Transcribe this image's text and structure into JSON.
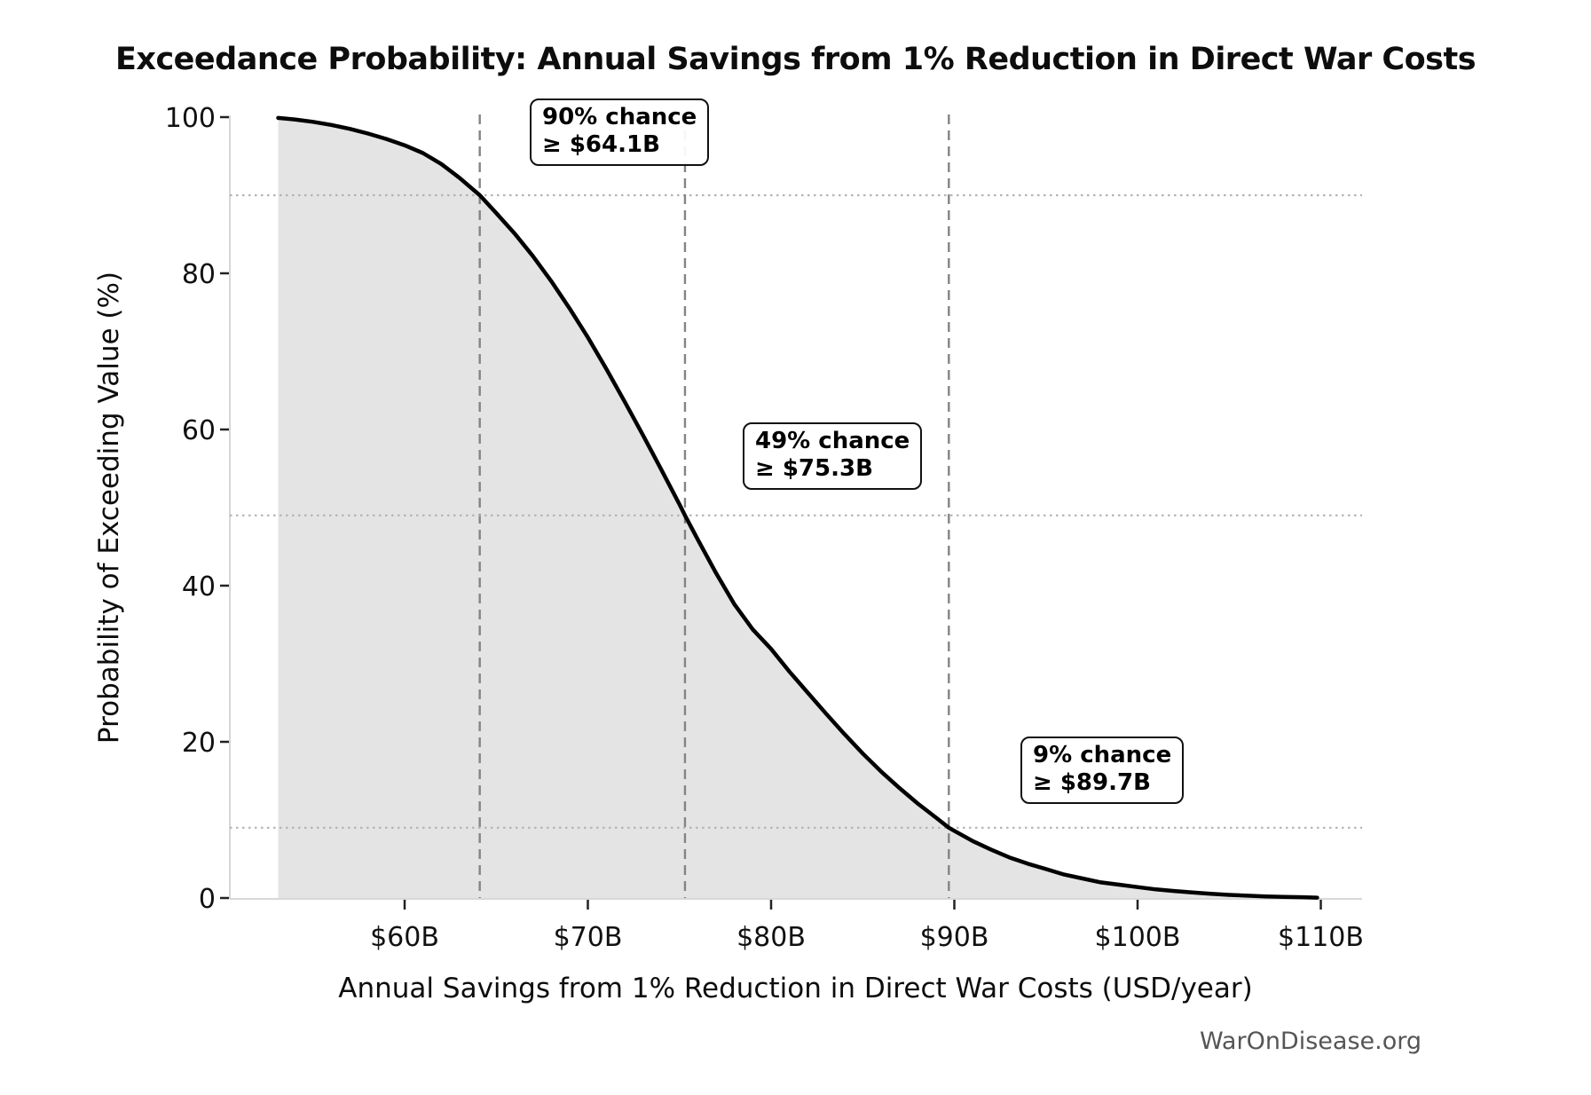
{
  "title": "Exceedance Probability: Annual Savings from 1% Reduction in Direct War Costs",
  "watermark": "WarOnDisease.org",
  "chart_data": {
    "type": "line",
    "title": "Exceedance Probability: Annual Savings from 1% Reduction in Direct War Costs",
    "xlabel": "Annual Savings from 1% Reduction in Direct War Costs (USD/year)",
    "ylabel": "Probability of Exceeding Value (%)",
    "x_unit": "USD billions per year",
    "xlim": [
      50.5,
      112.2
    ],
    "ylim": [
      0,
      100
    ],
    "grid": "reference lines only (no full grid)",
    "legend": "none",
    "x_ticks": [
      {
        "value": 60,
        "label": "$60B"
      },
      {
        "value": 70,
        "label": "$70B"
      },
      {
        "value": 80,
        "label": "$80B"
      },
      {
        "value": 90,
        "label": "$90B"
      },
      {
        "value": 100,
        "label": "$100B"
      },
      {
        "value": 110,
        "label": "$110B"
      }
    ],
    "y_ticks": [
      {
        "value": 0,
        "label": "0"
      },
      {
        "value": 20,
        "label": "20"
      },
      {
        "value": 40,
        "label": "40"
      },
      {
        "value": 60,
        "label": "60"
      },
      {
        "value": 80,
        "label": "80"
      },
      {
        "value": 100,
        "label": "100"
      }
    ],
    "series": [
      {
        "name": "exceedance-curve",
        "fill_under": true,
        "x": [
          53.1,
          54,
          55,
          56,
          57,
          58,
          59,
          60,
          61,
          62,
          63,
          64.1,
          65,
          66,
          67,
          68,
          69,
          70,
          71,
          72,
          73,
          74,
          75,
          75.3,
          76,
          77,
          78,
          79,
          80,
          81,
          82,
          83,
          84,
          85,
          86,
          87,
          88,
          89,
          89.7,
          90,
          91,
          92,
          93,
          94,
          95,
          96,
          97,
          98,
          99,
          100,
          101,
          102,
          103,
          104,
          105,
          106,
          107,
          108,
          109,
          109.8
        ],
        "y": [
          99.9,
          99.7,
          99.4,
          99.0,
          98.5,
          97.9,
          97.2,
          96.4,
          95.4,
          94.0,
          92.2,
          90.0,
          87.7,
          85.1,
          82.2,
          79.0,
          75.5,
          71.8,
          67.8,
          63.6,
          59.3,
          54.9,
          50.4,
          49.0,
          45.9,
          41.6,
          37.6,
          34.4,
          31.9,
          29.0,
          26.3,
          23.6,
          21.0,
          18.5,
          16.2,
          14.1,
          12.1,
          10.3,
          9.0,
          8.6,
          7.3,
          6.2,
          5.2,
          4.4,
          3.7,
          3.0,
          2.5,
          2.0,
          1.7,
          1.4,
          1.1,
          0.9,
          0.7,
          0.55,
          0.4,
          0.3,
          0.2,
          0.15,
          0.1,
          0.05
        ]
      }
    ],
    "annotations": [
      {
        "line1": "90% chance",
        "line2": "≥ $64.1B",
        "probability_pct": 90,
        "value_billion": 64.1
      },
      {
        "line1": "49% chance",
        "line2": "≥ $75.3B",
        "probability_pct": 49,
        "value_billion": 75.3
      },
      {
        "line1": "9% chance",
        "line2": "≥ $89.7B",
        "probability_pct": 9,
        "value_billion": 89.7
      }
    ],
    "colors": {
      "curve": "#000000",
      "fill": "#e4e4e4",
      "dashed_vline": "#848484",
      "dotted_hline": "#b3b3b3",
      "spine": "#cccccc",
      "tick": "#222222",
      "text": "#111111",
      "watermark": "#555555"
    }
  }
}
